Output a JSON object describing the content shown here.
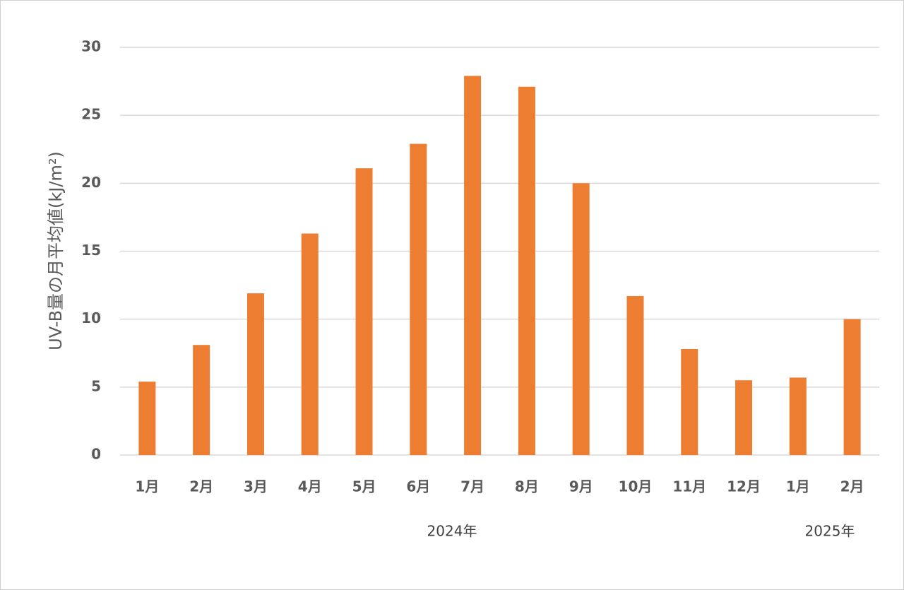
{
  "chart_data": {
    "type": "bar",
    "y_label": "UV-B量の月平均値(kJ/m²)",
    "categories": [
      "1月",
      "2月",
      "3月",
      "4月",
      "5月",
      "6月",
      "7月",
      "8月",
      "9月",
      "10月",
      "11月",
      "12月",
      "1月",
      "2月"
    ],
    "values": [
      5.4,
      8.1,
      11.9,
      16.3,
      21.1,
      22.9,
      27.9,
      27.1,
      20.0,
      11.7,
      7.8,
      5.5,
      5.7,
      10.0
    ],
    "color": "#ed7d31",
    "ylim": [
      0,
      30
    ],
    "yticks": [
      0,
      5,
      10,
      15,
      20,
      25,
      30
    ],
    "grid": true,
    "annotations": [
      "2024年",
      "2025年"
    ]
  }
}
